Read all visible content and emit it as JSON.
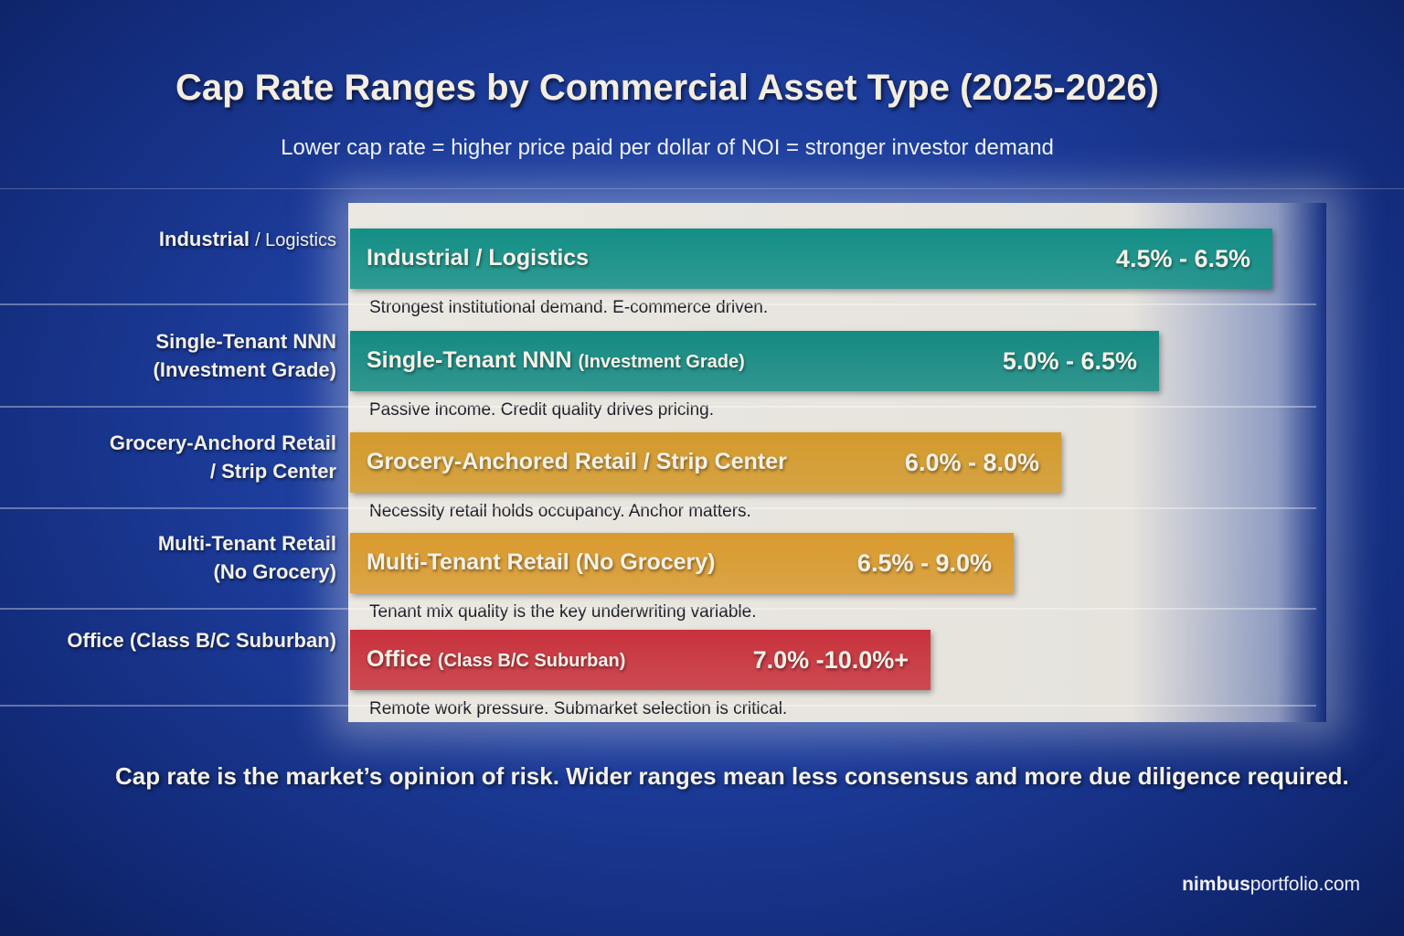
{
  "chart_data": {
    "type": "bar",
    "title": "Cap Rate Ranges by Commercial Asset Type (2025-2026)",
    "subtitle": "Lower cap rate = higher price paid per dollar of NOI = stronger investor demand",
    "orientation": "horizontal",
    "grid": false,
    "rows": [
      {
        "left_label": "Industrial",
        "left_label_minor": "/ Logistics",
        "name": "Industrial / Logistics",
        "name_minor": "",
        "range": "4.5% - 6.5%",
        "low": 4.5,
        "high": 6.5,
        "description": "Strongest institutional demand. E-commerce driven.",
        "color": "#138f86"
      },
      {
        "left_label": "Single-Tenant NNN",
        "left_label_minor": "(Investment Grade)",
        "name": "Single-Tenant NNN",
        "name_minor": "(Investment Grade)",
        "range": "5.0% - 6.5%",
        "low": 5.0,
        "high": 6.5,
        "description": "Passive income. Credit quality drives pricing.",
        "color": "#158a82"
      },
      {
        "left_label": "Grocery-Anchord Retail",
        "left_label_minor": "/ Strip Center",
        "name": "Grocery-Anchored Retail / Strip Center",
        "name_minor": "",
        "range": "6.0% - 8.0%",
        "low": 6.0,
        "high": 8.0,
        "description": "Necessity retail holds occupancy. Anchor matters.",
        "color": "#d39a2c"
      },
      {
        "left_label": "Multi-Tenant Retail",
        "left_label_minor": "(No Grocery)",
        "name": "Multi-Tenant Retail (No Grocery)",
        "name_minor": "",
        "range": "6.5% - 9.0%",
        "low": 6.5,
        "high": 9.0,
        "description": "Tenant mix quality is the key underwriting variable.",
        "color": "#d99a2e"
      },
      {
        "left_label": "Office (Class B/C Suburban)",
        "left_label_minor": "",
        "name": "Office",
        "name_minor": "(Class B/C Suburban)",
        "range": "7.0% -10.0%+",
        "low": 7.0,
        "high": 10.0,
        "description": "Remote work pressure. Submarket selection is critical.",
        "color": "#c8323c"
      }
    ]
  },
  "footnote": "Cap rate is the market’s opinion of risk. Wider ranges mean less consensus and more due diligence required.",
  "brand": {
    "bold": "nimbus",
    "rest": "portfolio.com"
  }
}
